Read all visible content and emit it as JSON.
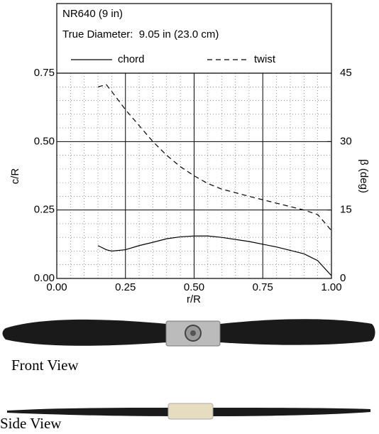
{
  "chart_data": {
    "type": "line",
    "title": "NR640 (9 in)",
    "subtitle": "True Diameter:  9.05 in (23.0 cm)",
    "x_label": "r/R",
    "y_label": "c/R",
    "y2_label": "β (deg)",
    "x": [
      0.15,
      0.18,
      0.2,
      0.25,
      0.3,
      0.35,
      0.4,
      0.45,
      0.5,
      0.55,
      0.6,
      0.7,
      0.8,
      0.9,
      0.95,
      1.0
    ],
    "series": [
      {
        "name": "chord",
        "color": "#000000",
        "line_style": "solid",
        "axis": "y",
        "values": [
          0.12,
          0.105,
          0.1,
          0.105,
          0.12,
          0.132,
          0.145,
          0.152,
          0.155,
          0.155,
          0.15,
          0.135,
          0.115,
          0.09,
          0.065,
          0.01
        ]
      },
      {
        "name": "twist",
        "color": "#000000",
        "line_style": "dashed",
        "axis": "y2",
        "values": [
          42,
          42.5,
          41,
          37,
          33.5,
          30,
          27,
          24.5,
          22.5,
          20.8,
          19.6,
          18,
          16.5,
          15,
          14,
          10.5
        ]
      }
    ],
    "xlim": [
      0,
      1
    ],
    "ylim": [
      0,
      0.75
    ],
    "y2lim": [
      0,
      45
    ],
    "xticks": [
      {
        "value": 0,
        "label": "0.00"
      },
      {
        "value": 0.25,
        "label": "0.25"
      },
      {
        "value": 0.5,
        "label": "0.50"
      },
      {
        "value": 0.75,
        "label": "0.75"
      },
      {
        "value": 1,
        "label": "1.00"
      }
    ],
    "yticks": [
      {
        "value": 0,
        "label": "0.00"
      },
      {
        "value": 0.25,
        "label": "0.25"
      },
      {
        "value": 0.5,
        "label": "0.50"
      },
      {
        "value": 0.75,
        "label": "0.75"
      }
    ],
    "y2ticks": [
      0,
      15,
      30,
      45
    ],
    "grid": true,
    "minor_grid": true
  },
  "images": [
    {
      "caption": "Front View"
    },
    {
      "caption": "Side View"
    }
  ]
}
